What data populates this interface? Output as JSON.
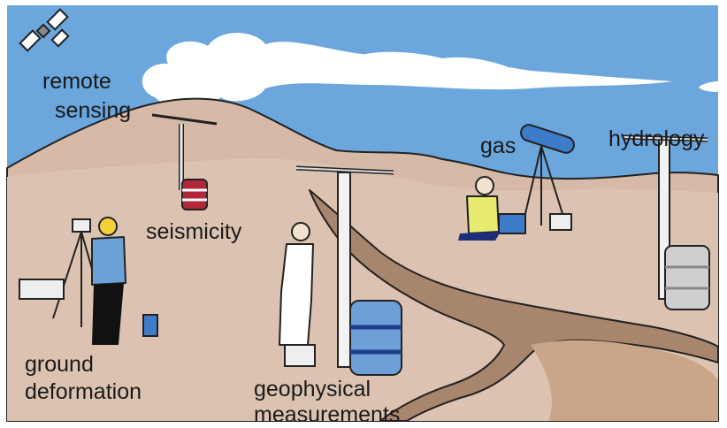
{
  "labels": [
    {
      "lines": [
        "remote",
        "sensing"
      ]
    },
    {
      "lines": [
        "seismicity"
      ]
    },
    {
      "lines": [
        "gas"
      ]
    },
    {
      "lines": [
        "hydrology"
      ]
    },
    {
      "lines": [
        "ground",
        "deformation"
      ]
    },
    {
      "lines": [
        "geophysical",
        "measurements"
      ]
    }
  ]
}
